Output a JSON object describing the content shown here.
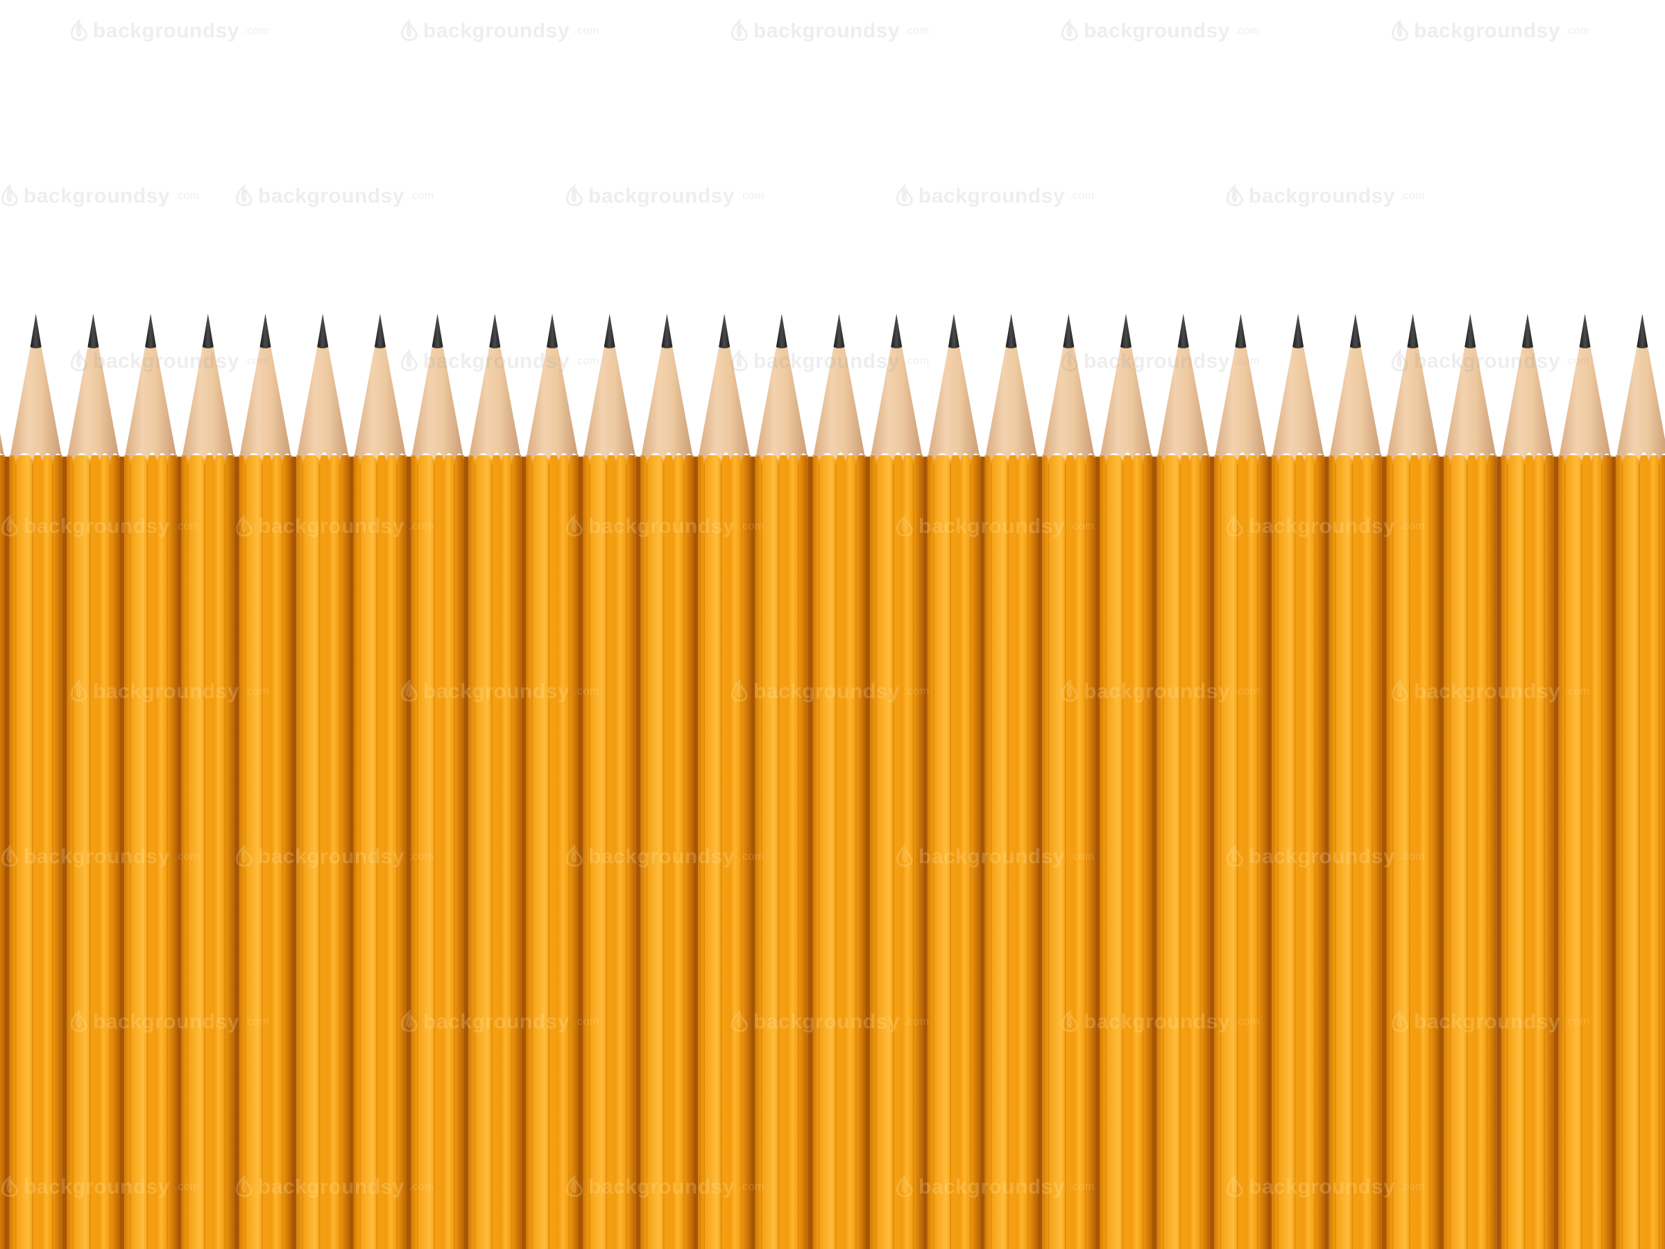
{
  "watermark": {
    "brand": "backgroundsy",
    "suffix": ".com",
    "icon": "flame-logo-icon"
  },
  "pencils": {
    "count": 30,
    "colors": {
      "body": "#f5a012",
      "body_highlight": "#ffbd3d",
      "body_shadow": "#c96e05",
      "wood": "#eec9a0",
      "wood_shadow": "#c99c74",
      "lead": "#2e2e2e",
      "background": "#ffffff"
    }
  }
}
